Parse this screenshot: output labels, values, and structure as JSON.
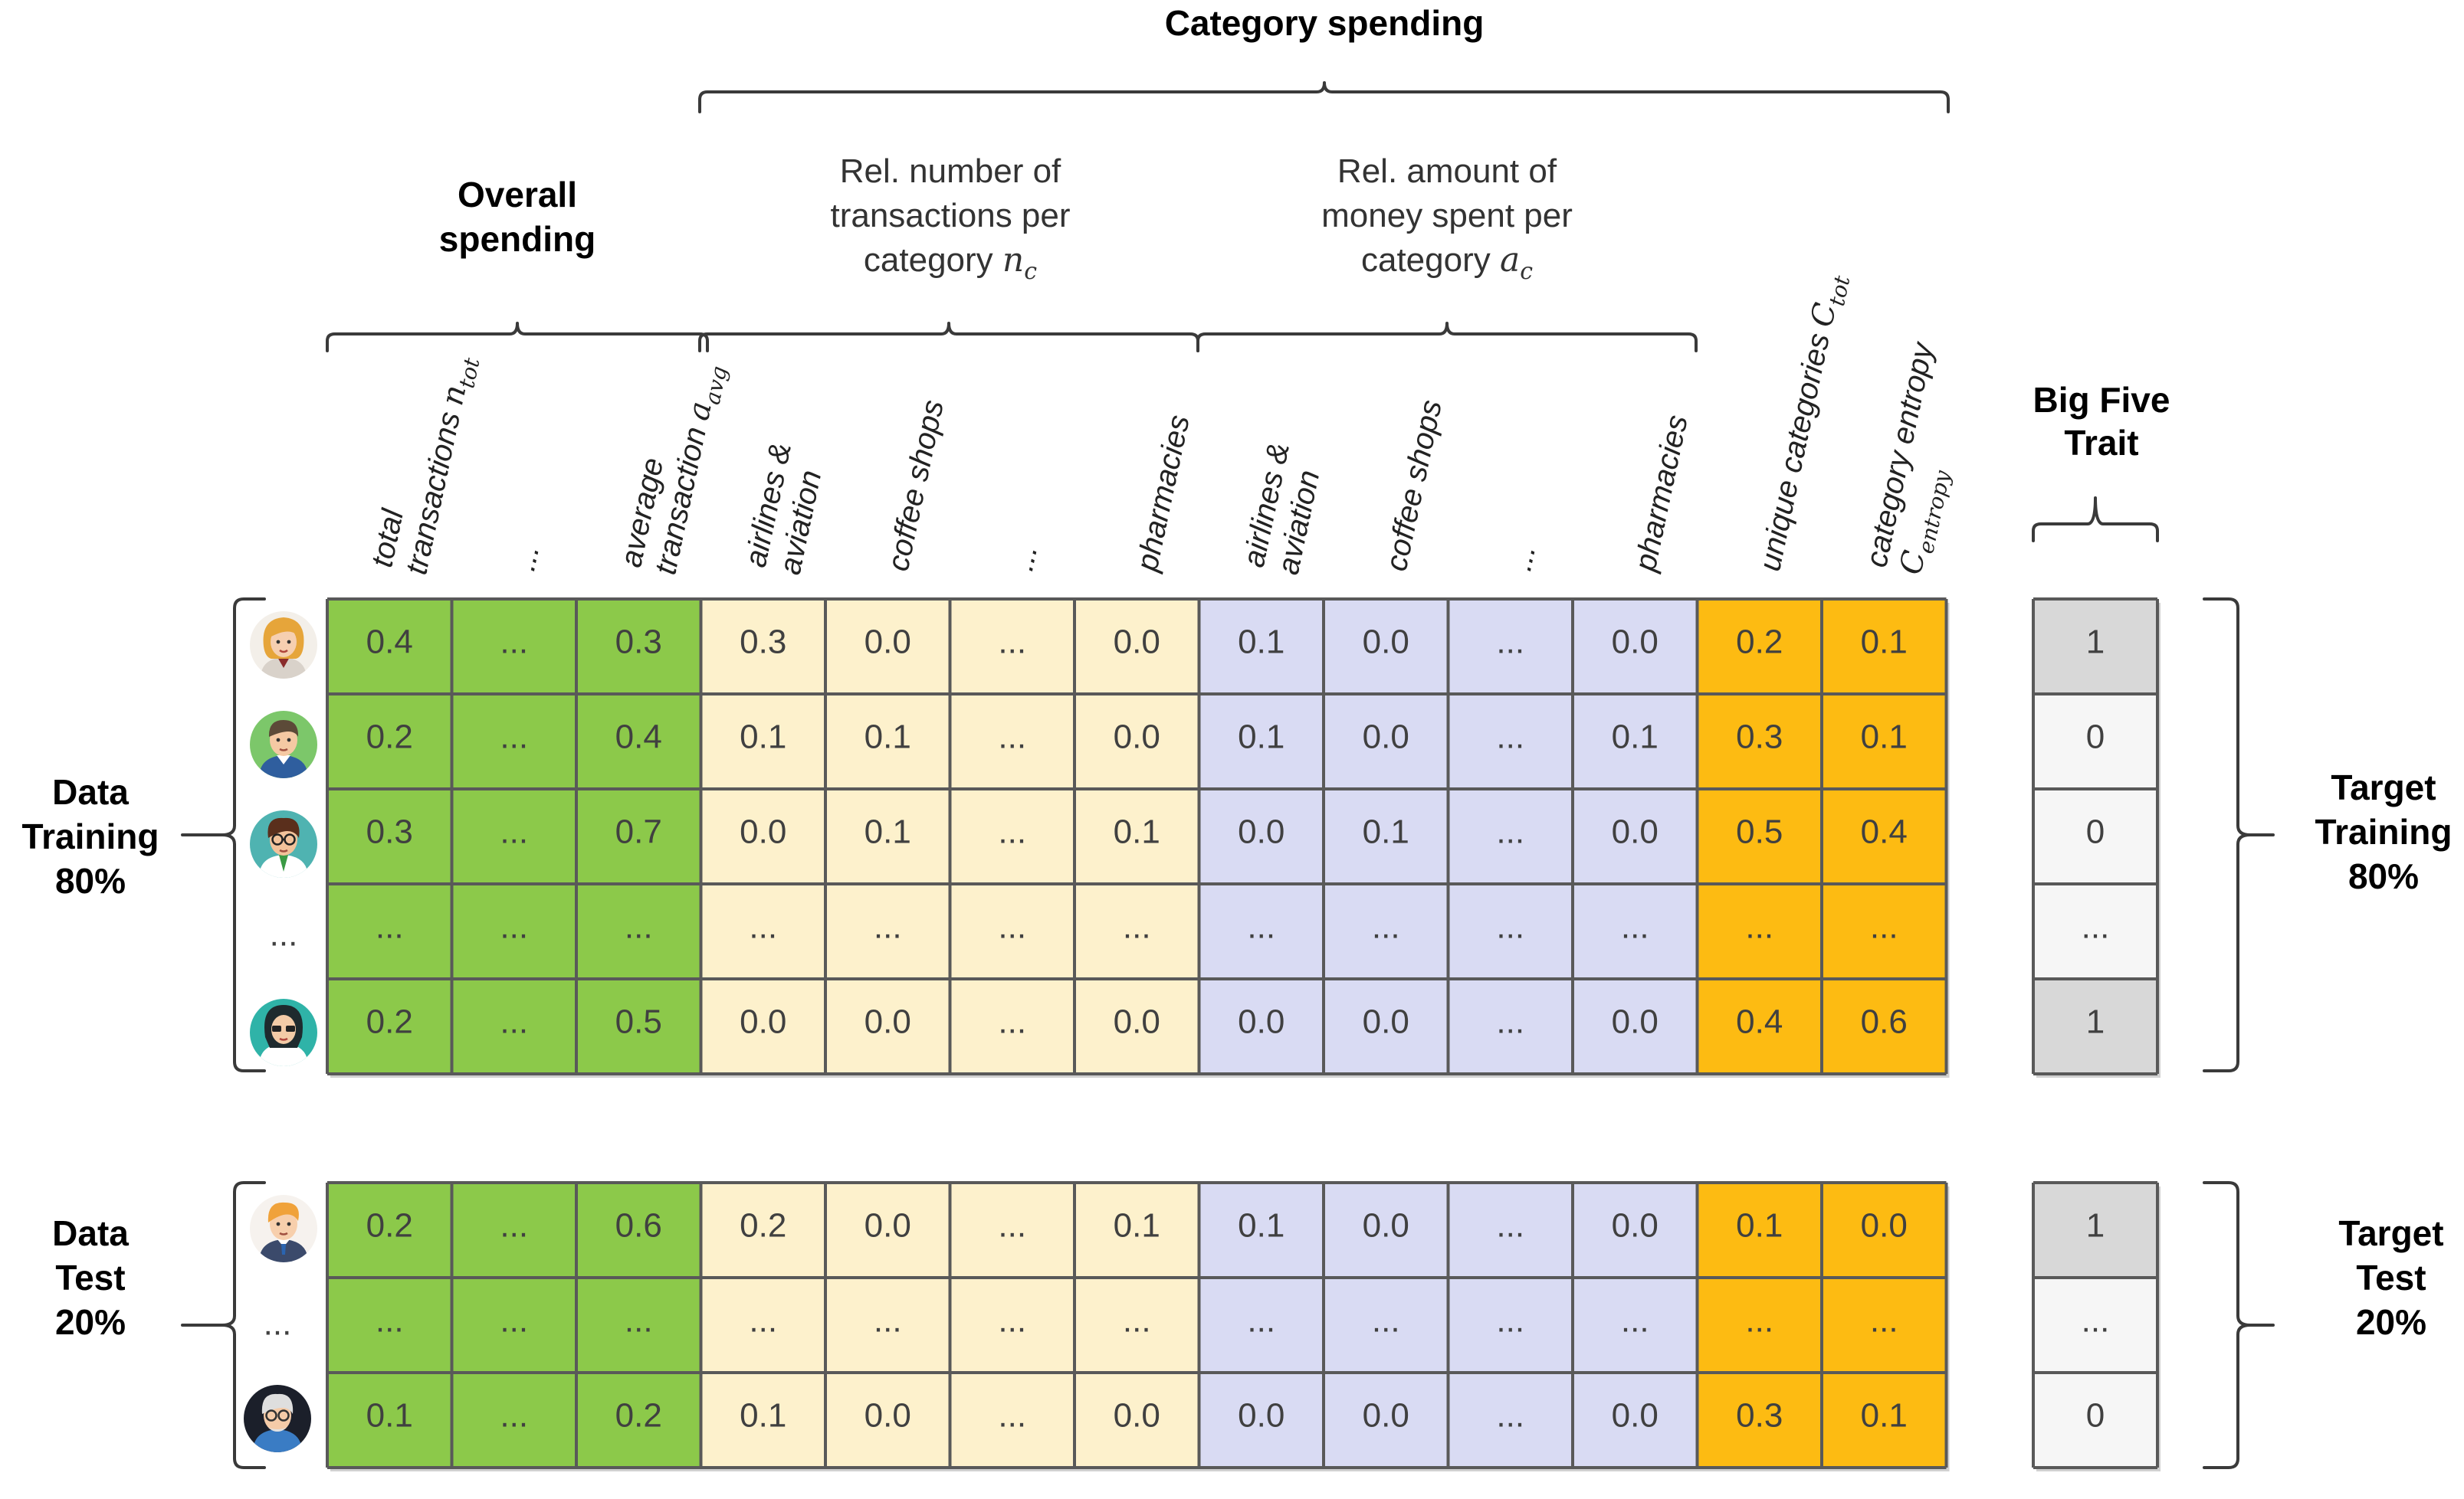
{
  "titles": {
    "category_spending": "Category spending",
    "overall_spending_l1": "Overall",
    "overall_spending_l2": "spending",
    "rel_num_l1": "Rel. number of",
    "rel_num_l2": "transactions per",
    "rel_num_l3": "category",
    "rel_num_sym": "n",
    "rel_num_sub": "c",
    "rel_amt_l1": "Rel. amount of",
    "rel_amt_l2": "money spent per",
    "rel_amt_l3": "category",
    "rel_amt_sym": "a",
    "rel_amt_sub": "c",
    "big_five_l1": "Big Five",
    "big_five_l2": "Trait"
  },
  "columns": [
    {
      "l1": "total",
      "l2": "transactions",
      "sym": "n",
      "sub": "tot"
    },
    {
      "l1": "...",
      "l2": "",
      "sym": "",
      "sub": ""
    },
    {
      "l1": "average",
      "l2": "transaction",
      "sym": "a",
      "sub": "avg"
    },
    {
      "l1": "airlines &",
      "l2": "aviation",
      "sym": "",
      "sub": ""
    },
    {
      "l1": "coffee shops",
      "l2": "",
      "sym": "",
      "sub": ""
    },
    {
      "l1": "...",
      "l2": "",
      "sym": "",
      "sub": ""
    },
    {
      "l1": "pharmacies",
      "l2": "",
      "sym": "",
      "sub": ""
    },
    {
      "l1": "airlines &",
      "l2": "aviation",
      "sym": "",
      "sub": ""
    },
    {
      "l1": "coffee shops",
      "l2": "",
      "sym": "",
      "sub": ""
    },
    {
      "l1": "...",
      "l2": "",
      "sym": "",
      "sub": ""
    },
    {
      "l1": "pharmacies",
      "l2": "",
      "sym": "",
      "sub": ""
    },
    {
      "l1": "unique categories",
      "l2": "",
      "sym": "C",
      "sub": "tot"
    },
    {
      "l1": "category entropy",
      "l2": "",
      "sym": "C",
      "sub": "entropy"
    }
  ],
  "group_colors": {
    "overall": "#8cc94a",
    "rel_number": "#fdf1cc",
    "rel_amount": "#d9dbf3",
    "unique_entropy": "#fdbb12",
    "target_dark": "#d8d8d8",
    "target_light": "#f6f6f6"
  },
  "training": {
    "label_l1": "Data",
    "label_l2": "Training",
    "label_l3": "80%",
    "target_l1": "Target",
    "target_l2": "Training",
    "target_l3": "80%",
    "row_markers": [
      "avatar-woman-blonde",
      "avatar-man-green",
      "avatar-man-glasses",
      "...",
      "avatar-woman-glasses"
    ],
    "rows": [
      [
        "0.4",
        "...",
        "0.3",
        "0.3",
        "0.0",
        "...",
        "0.0",
        "0.1",
        "0.0",
        "...",
        "0.0",
        "0.2",
        "0.1"
      ],
      [
        "0.2",
        "...",
        "0.4",
        "0.1",
        "0.1",
        "...",
        "0.0",
        "0.1",
        "0.0",
        "...",
        "0.1",
        "0.3",
        "0.1"
      ],
      [
        "0.3",
        "...",
        "0.7",
        "0.0",
        "0.1",
        "...",
        "0.1",
        "0.0",
        "0.1",
        "...",
        "0.0",
        "0.5",
        "0.4"
      ],
      [
        "...",
        "...",
        "...",
        "...",
        "...",
        "...",
        "...",
        "...",
        "...",
        "...",
        "...",
        "...",
        "..."
      ],
      [
        "0.2",
        "...",
        "0.5",
        "0.0",
        "0.0",
        "...",
        "0.0",
        "0.0",
        "0.0",
        "...",
        "0.0",
        "0.4",
        "0.6"
      ]
    ],
    "targets": [
      "1",
      "0",
      "0",
      "...",
      "1"
    ]
  },
  "test": {
    "label_l1": "Data",
    "label_l2": "Test",
    "label_l3": "20%",
    "target_l1": "Target",
    "target_l2": "Test",
    "target_l3": "20%",
    "row_markers": [
      "avatar-man-blonde",
      "...",
      "avatar-old-man"
    ],
    "rows": [
      [
        "0.2",
        "...",
        "0.6",
        "0.2",
        "0.0",
        "...",
        "0.1",
        "0.1",
        "0.0",
        "...",
        "0.0",
        "0.1",
        "0.0"
      ],
      [
        "...",
        "...",
        "...",
        "...",
        "...",
        "...",
        "...",
        "...",
        "...",
        "...",
        "...",
        "...",
        "..."
      ],
      [
        "0.1",
        "...",
        "0.2",
        "0.1",
        "0.0",
        "...",
        "0.0",
        "0.0",
        "0.0",
        "...",
        "0.0",
        "0.3",
        "0.1"
      ]
    ],
    "targets": [
      "1",
      "...",
      "0"
    ]
  }
}
